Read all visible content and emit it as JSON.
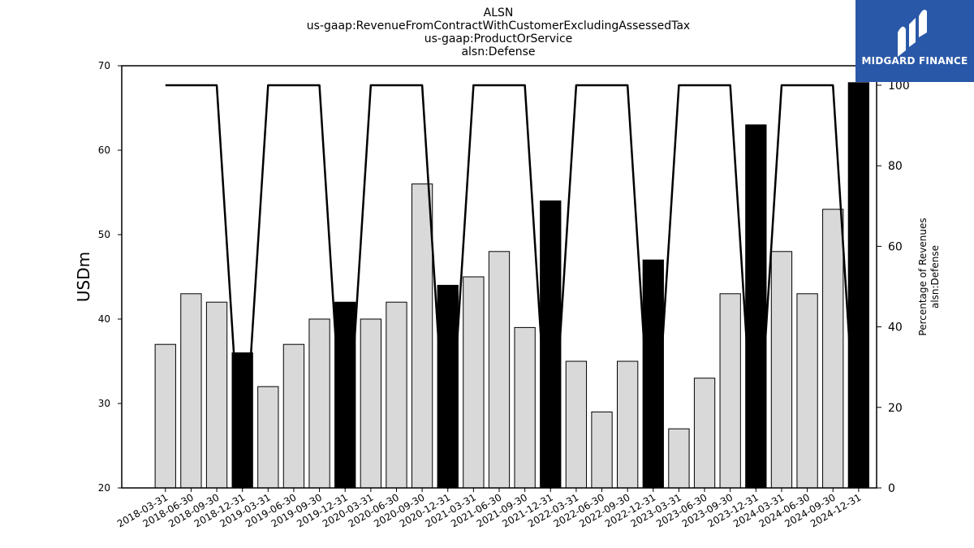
{
  "chart_data": {
    "type": "bar",
    "title_lines": [
      "ALSN",
      "us-gaap:RevenueFromContractWithCustomerExcludingAssessedTax",
      "us-gaap:ProductOrService",
      "alsn:Defense"
    ],
    "ylabel": "USDm",
    "y2label_lines": [
      "Percentage of Revenues",
      "alsn:Defense"
    ],
    "ylim": [
      20,
      70
    ],
    "y2lim": [
      0,
      100
    ],
    "yticks": [
      20,
      30,
      40,
      50,
      60,
      70
    ],
    "y2ticks": [
      0,
      20,
      40,
      60,
      80,
      100
    ],
    "categories": [
      "2018-03-31",
      "2018-06-30",
      "2018-09-30",
      "2018-12-31",
      "2019-03-31",
      "2019-06-30",
      "2019-09-30",
      "2019-12-31",
      "2020-03-31",
      "2020-06-30",
      "2020-09-30",
      "2020-12-31",
      "2021-03-31",
      "2021-06-30",
      "2021-09-30",
      "2021-12-31",
      "2022-03-31",
      "2022-06-30",
      "2022-09-30",
      "2022-12-31",
      "2023-03-31",
      "2023-06-30",
      "2023-09-30",
      "2023-12-31",
      "2024-03-31",
      "2024-06-30",
      "2024-09-30",
      "2024-12-31"
    ],
    "values": [
      37,
      43,
      42,
      36,
      32,
      37,
      40,
      42,
      40,
      42,
      56,
      44,
      45,
      48,
      39,
      54,
      35,
      29,
      35,
      47,
      27,
      33,
      43,
      63,
      48,
      43,
      53,
      68
    ],
    "highlight": [
      false,
      false,
      false,
      true,
      false,
      false,
      false,
      true,
      false,
      false,
      false,
      true,
      false,
      false,
      false,
      true,
      false,
      false,
      false,
      true,
      false,
      false,
      false,
      true,
      false,
      false,
      false,
      true
    ],
    "line_values": [
      100,
      100,
      100,
      0,
      100,
      100,
      100,
      0,
      100,
      100,
      100,
      0,
      100,
      100,
      100,
      0,
      100,
      100,
      100,
      0,
      100,
      100,
      100,
      0,
      100,
      100,
      100,
      0
    ],
    "colors": {
      "bar": "#d9d9d9",
      "bar_highlight": "#000000",
      "line": "#000000",
      "edge": "#000000"
    },
    "grid": false
  },
  "logo": {
    "text": "MIDGARD FINANCE",
    "color": "#2a58a8"
  }
}
